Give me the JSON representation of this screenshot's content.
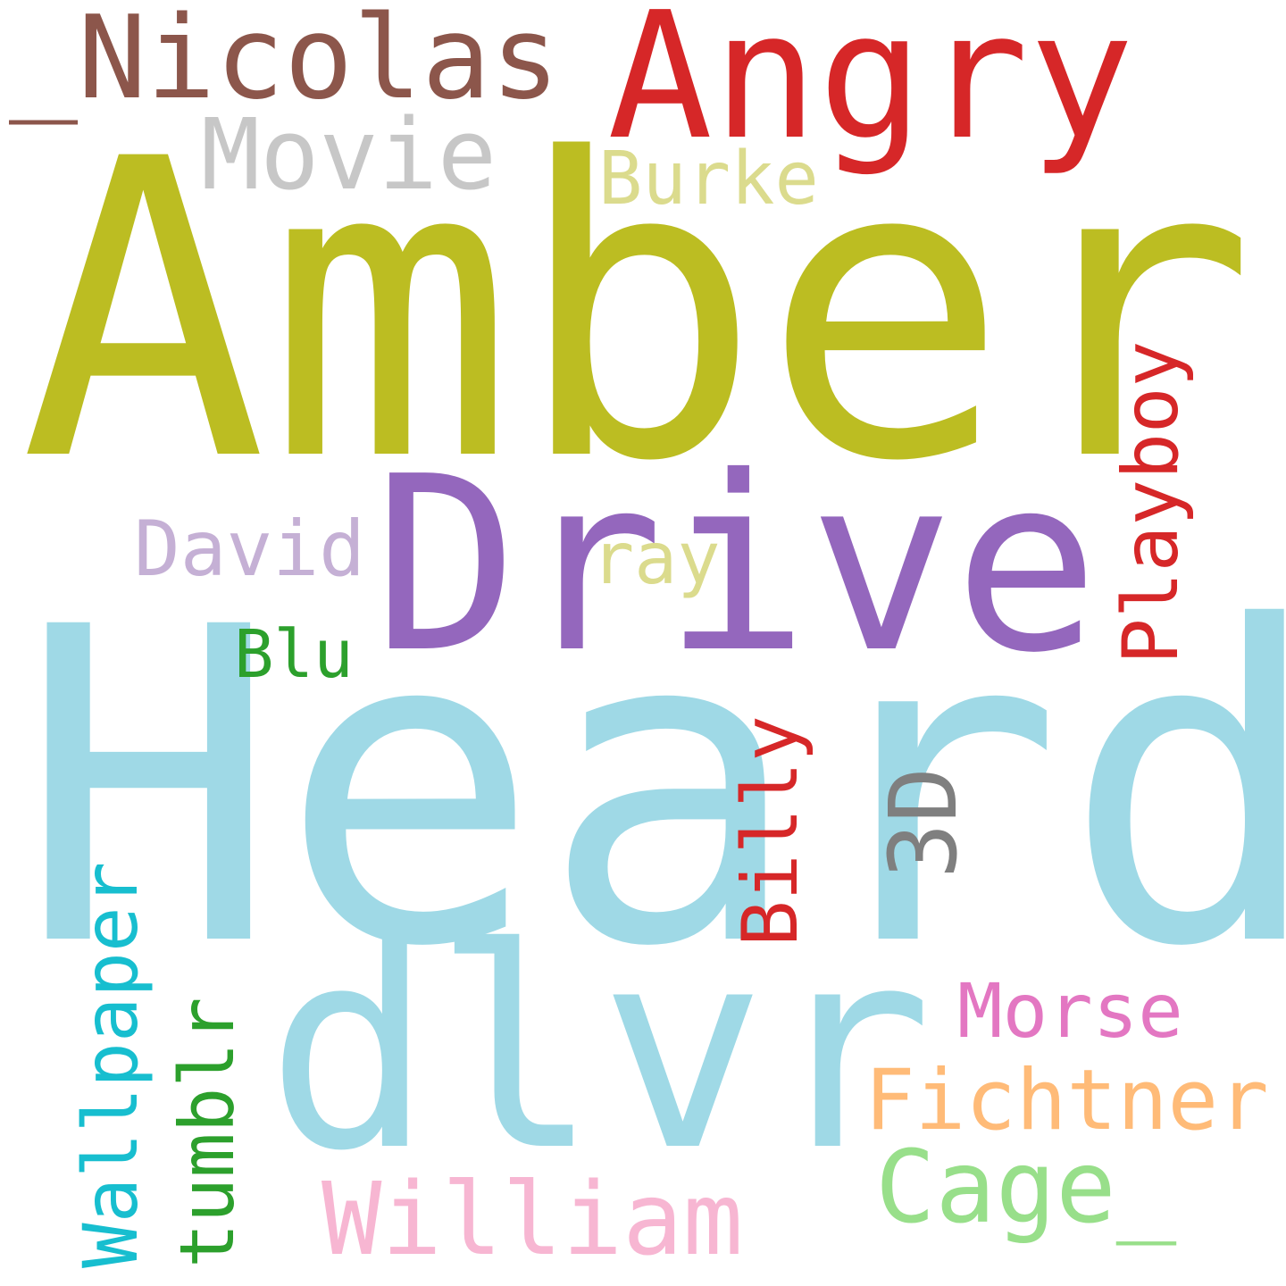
{
  "words": [
    {
      "key": "heard",
      "text": "Heard",
      "color": "#9fd9e6"
    },
    {
      "key": "amber",
      "text": "Amber",
      "color": "#bcbd22"
    },
    {
      "key": "drive",
      "text": "Drive",
      "color": "#9467bd"
    },
    {
      "key": "dlvr",
      "text": "dlvr",
      "color": "#9fd9e6"
    },
    {
      "key": "angry",
      "text": "Angry",
      "color": "#d62728"
    },
    {
      "key": "nicolas",
      "text": "_Nicolas",
      "color": "#8c564b"
    },
    {
      "key": "movie",
      "text": "Movie",
      "color": "#c7c7c7"
    },
    {
      "key": "burke",
      "text": "Burke",
      "color": "#dbdb8d"
    },
    {
      "key": "david",
      "text": "David",
      "color": "#c5b0d5"
    },
    {
      "key": "ray",
      "text": "ray",
      "color": "#dbdb8d"
    },
    {
      "key": "blu",
      "text": "Blu",
      "color": "#2ca02c"
    },
    {
      "key": "playboy",
      "text": "Playboy",
      "color": "#d62728"
    },
    {
      "key": "billy",
      "text": "Billy",
      "color": "#d62728"
    },
    {
      "key": "three_d",
      "text": "3D",
      "color": "#7f7f7f"
    },
    {
      "key": "wallpaper",
      "text": "Wallpaper",
      "color": "#17becf"
    },
    {
      "key": "tumblr",
      "text": "tumblr",
      "color": "#2ca02c"
    },
    {
      "key": "morse",
      "text": "Morse",
      "color": "#e377c2"
    },
    {
      "key": "fichtner",
      "text": "Fichtner",
      "color": "#ffbb78"
    },
    {
      "key": "cage",
      "text": "Cage_",
      "color": "#98df8a"
    },
    {
      "key": "william",
      "text": "William",
      "color": "#f7b6d2"
    }
  ]
}
